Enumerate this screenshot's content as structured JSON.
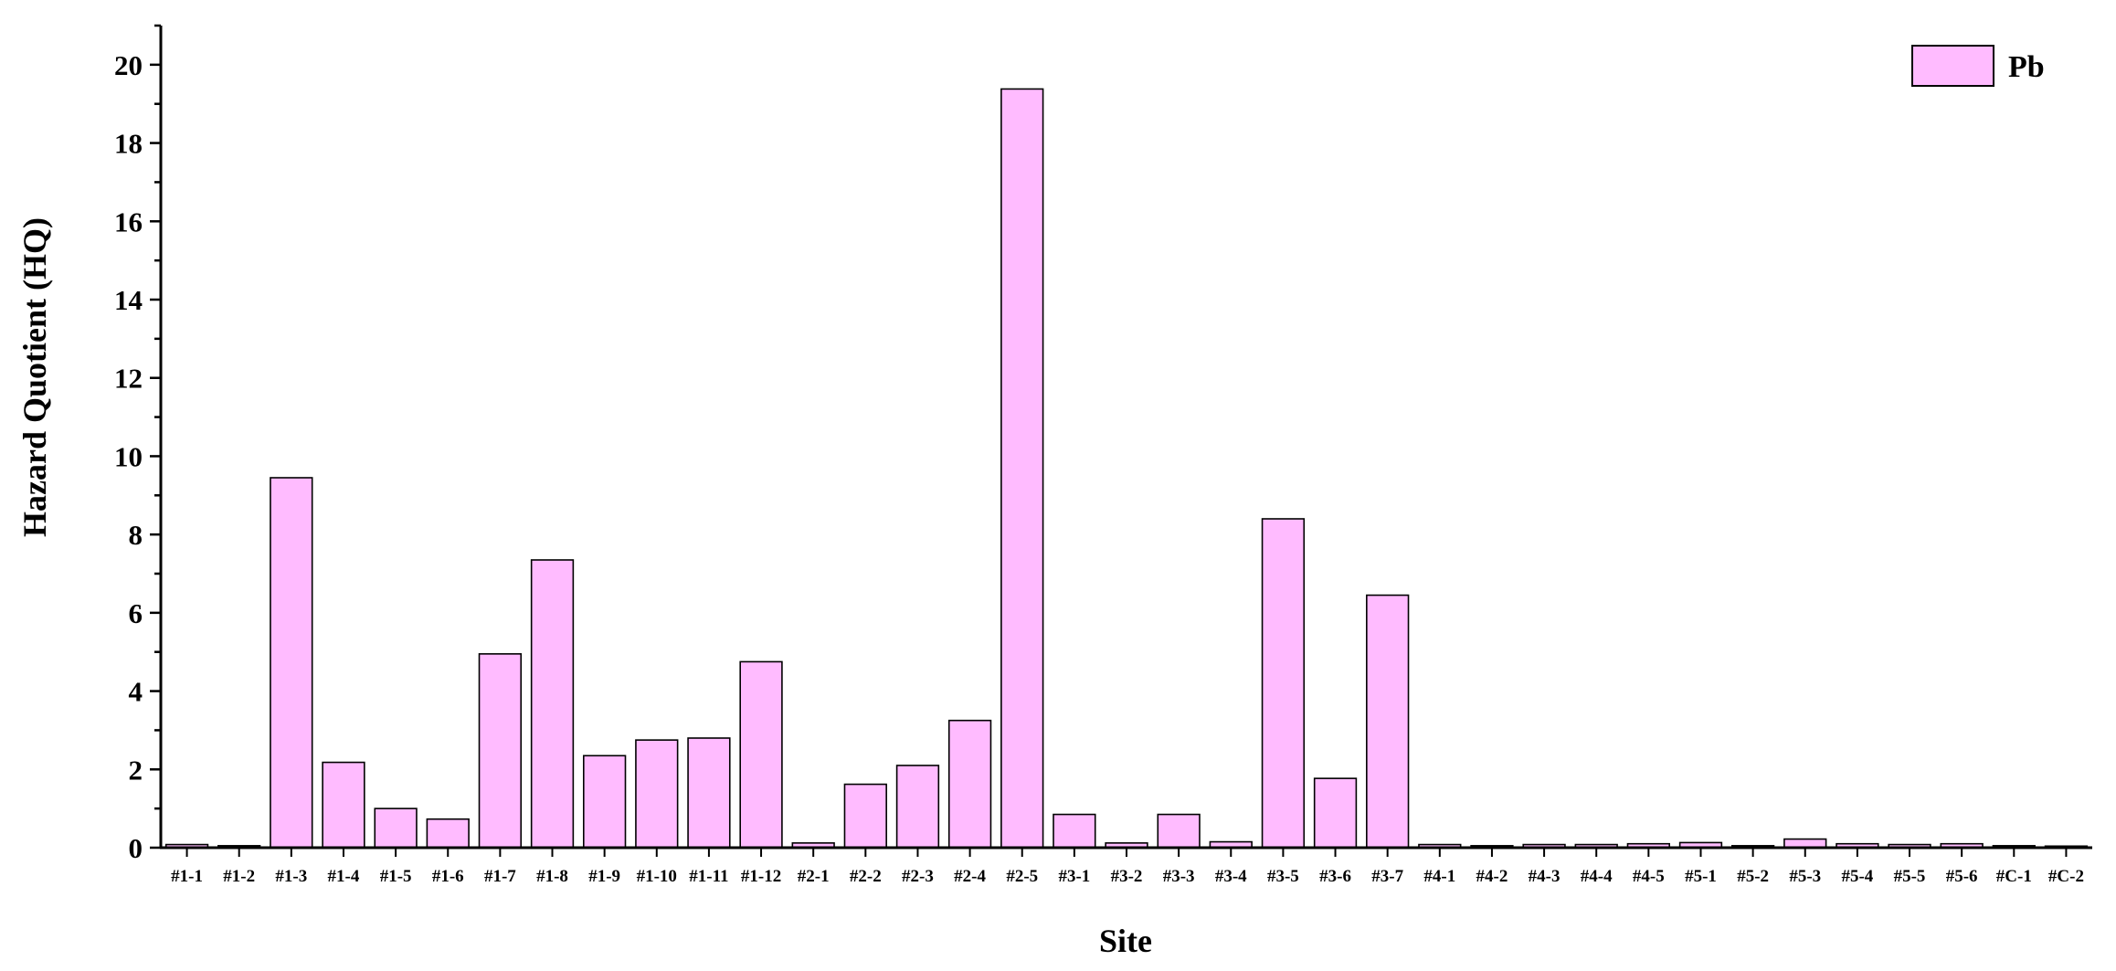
{
  "chart_data": {
    "type": "bar",
    "xlabel": "Site",
    "ylabel": "Hazard Quotient (HQ)",
    "ylim": [
      0,
      21
    ],
    "yticks": [
      0,
      2,
      4,
      6,
      8,
      10,
      12,
      14,
      16,
      18,
      20
    ],
    "grid": false,
    "legend_position": "top-right",
    "bar_color": "#ffbbff",
    "edge_color": "#000000",
    "categories": [
      "#1-1",
      "#1-2",
      "#1-3",
      "#1-4",
      "#1-5",
      "#1-6",
      "#1-7",
      "#1-8",
      "#1-9",
      "#1-10",
      "#1-11",
      "#1-12",
      "#2-1",
      "#2-2",
      "#2-3",
      "#2-4",
      "#2-5",
      "#3-1",
      "#3-2",
      "#3-3",
      "#3-4",
      "#3-5",
      "#3-6",
      "#3-7",
      "#4-1",
      "#4-2",
      "#4-3",
      "#4-4",
      "#4-5",
      "#5-1",
      "#5-2",
      "#5-3",
      "#5-4",
      "#5-5",
      "#5-6",
      "#C-1",
      "#C-2"
    ],
    "series": [
      {
        "name": "Pb",
        "values": [
          0.08,
          0.05,
          9.45,
          2.18,
          1.0,
          0.73,
          4.95,
          7.35,
          2.35,
          2.75,
          2.8,
          4.75,
          0.12,
          1.62,
          2.1,
          3.25,
          19.38,
          0.85,
          0.12,
          0.85,
          0.15,
          8.4,
          1.77,
          6.45,
          0.08,
          0.05,
          0.08,
          0.08,
          0.1,
          0.13,
          0.05,
          0.22,
          0.1,
          0.08,
          0.1,
          0.05,
          0.04
        ]
      }
    ]
  }
}
